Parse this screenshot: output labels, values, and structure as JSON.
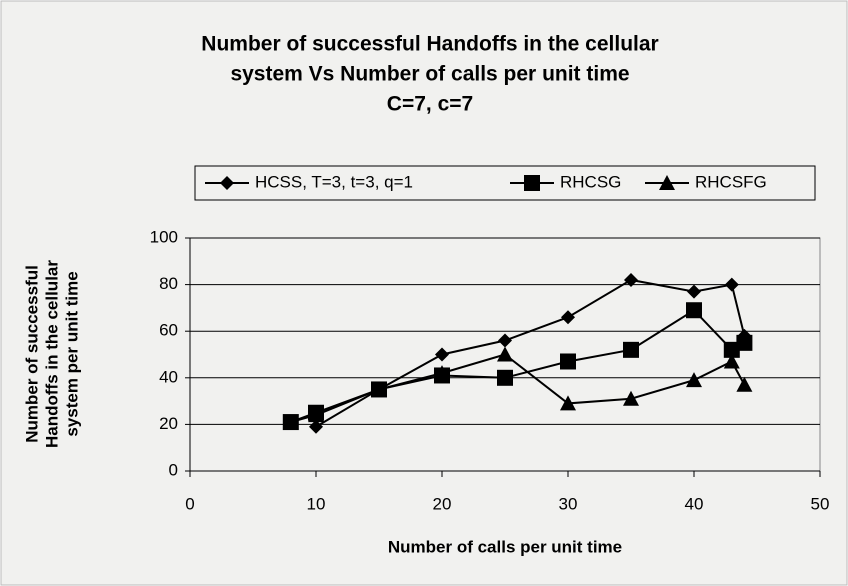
{
  "chart_data": {
    "type": "line",
    "title": [
      "Number of successful Handoffs in the cellular",
      "system Vs Number of calls per unit time",
      "C=7, c=7"
    ],
    "x_label": "Number of calls per unit time",
    "y_label": [
      "Number of successful",
      "Handoffs in the cellular",
      "system per unit time"
    ],
    "x": [
      8,
      10,
      15,
      20,
      25,
      30,
      35,
      40,
      43,
      44
    ],
    "series": [
      {
        "name": "HCSS, T=3, t=3, q=1",
        "color": "#000000",
        "marker": "diamond",
        "values": [
          null,
          19,
          35,
          50,
          56,
          66,
          82,
          77,
          80,
          58
        ]
      },
      {
        "name": "RHCSG",
        "color": "#000000",
        "marker": "square",
        "values": [
          21,
          25,
          35,
          41,
          40,
          47,
          52,
          69,
          52,
          55
        ]
      },
      {
        "name": "RHCSFG",
        "color": "#000000",
        "marker": "triangle",
        "values": [
          21,
          24,
          35,
          42,
          50,
          29,
          31,
          39,
          47,
          37
        ]
      }
    ],
    "xlim": [
      0,
      50
    ],
    "xticks": [
      0,
      10,
      20,
      30,
      40,
      50
    ],
    "ylim": [
      0,
      100
    ],
    "yticks": [
      0,
      20,
      40,
      60,
      80,
      100
    ],
    "grid": true,
    "legend": "top"
  }
}
